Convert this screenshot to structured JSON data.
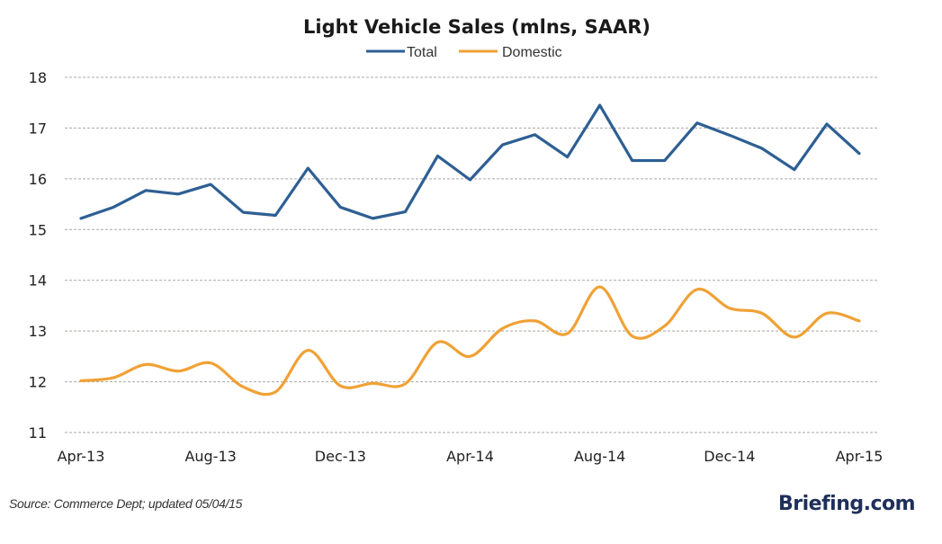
{
  "chart_data": {
    "type": "line",
    "title": "Light Vehicle Sales (mlns, SAAR)",
    "xlabel": "",
    "ylabel": "",
    "ylim": [
      11,
      18
    ],
    "yticks": [
      11,
      12,
      13,
      14,
      15,
      16,
      17,
      18
    ],
    "ytick_labels": [
      "11",
      "12",
      "13",
      "14",
      "15",
      "16",
      "17",
      "18"
    ],
    "grid": true,
    "legend_position": "top-center",
    "x": [
      "Apr-13",
      "May-13",
      "Jun-13",
      "Jul-13",
      "Aug-13",
      "Sep-13",
      "Oct-13",
      "Nov-13",
      "Dec-13",
      "Jan-14",
      "Feb-14",
      "Mar-14",
      "Apr-14",
      "May-14",
      "Jun-14",
      "Jul-14",
      "Aug-14",
      "Sep-14",
      "Oct-14",
      "Nov-14",
      "Dec-14",
      "Jan-15",
      "Feb-15",
      "Mar-15",
      "Apr-15"
    ],
    "xtick_labels": [
      "Apr-13",
      "Aug-13",
      "Dec-13",
      "Apr-14",
      "Aug-14",
      "Dec-14",
      "Apr-15"
    ],
    "xtick_indices": [
      0,
      4,
      8,
      12,
      16,
      20,
      24
    ],
    "series": [
      {
        "name": "Total",
        "color": "#2e5f93",
        "smooth": false,
        "values": [
          15.22,
          15.44,
          15.77,
          15.7,
          15.89,
          15.34,
          15.28,
          16.21,
          15.44,
          15.22,
          15.35,
          16.45,
          15.98,
          16.67,
          16.87,
          16.43,
          17.45,
          16.36,
          16.36,
          17.1,
          16.86,
          16.6,
          16.18,
          17.08,
          16.5
        ]
      },
      {
        "name": "Domestic",
        "color": "#f0a135",
        "smooth": true,
        "values": [
          12.02,
          12.08,
          12.34,
          12.21,
          12.37,
          11.9,
          11.8,
          12.62,
          11.92,
          11.97,
          11.96,
          12.78,
          12.5,
          13.05,
          13.2,
          12.95,
          13.87,
          12.9,
          13.1,
          13.82,
          13.45,
          13.35,
          12.88,
          13.35,
          13.2
        ]
      }
    ]
  },
  "footer": {
    "source": "Source: Commerce Dept; updated 05/04/15",
    "brand": "Briefing.com"
  }
}
